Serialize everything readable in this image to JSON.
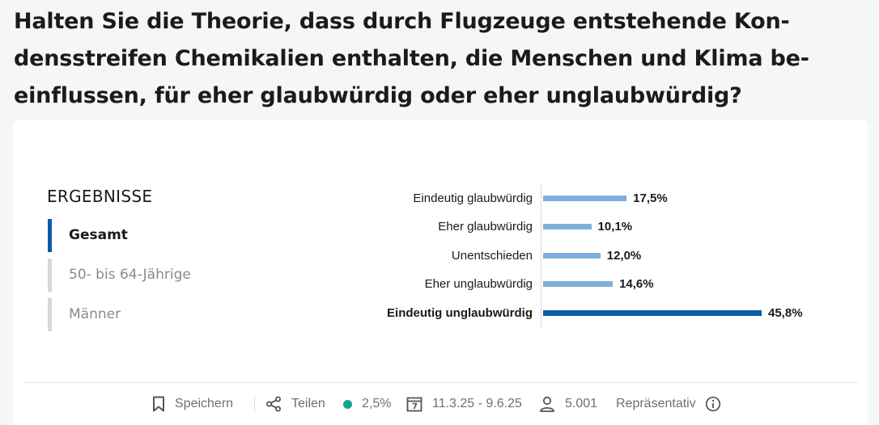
{
  "question": "Halten Sie die Theorie, dass durch Flugzeuge entstehende Kon­densstreifen Chemikalien enthalten, die Menschen und Klima be­einflussen, für eher glaubwürdig oder eher unglaubwürdig?",
  "results": {
    "heading": "ERGEBNISSE",
    "tabs": [
      {
        "label": "Gesamt",
        "active": true
      },
      {
        "label": "50- bis 64-Jährige",
        "active": false
      },
      {
        "label": "Männer",
        "active": false
      }
    ]
  },
  "chart_data": {
    "type": "bar",
    "orientation": "horizontal",
    "categories": [
      "Eindeutig glaubwürdig",
      "Eher glaubwürdig",
      "Unentschieden",
      "Eher unglaubwürdig",
      "Eindeutig unglaubwürdig"
    ],
    "values": [
      17.5,
      10.1,
      12.0,
      14.6,
      45.8
    ],
    "value_labels": [
      "17,5%",
      "10,1%",
      "12,0%",
      "14,6%",
      "45,8%"
    ],
    "highlighted_index": 4,
    "colors": {
      "default": "#7fb0db",
      "highlight": "#0a5ca8"
    },
    "xlim": [
      0,
      50
    ]
  },
  "footer": {
    "save_label": "Speichern",
    "share_label": "Teilen",
    "margin_of_error": "2,5%",
    "status_color": "#14a38b",
    "date_range": "11.3.25 - 9.6.25",
    "sample_size": "5.001",
    "representative_label": "Repräsentativ"
  },
  "icons": {
    "save": "bookmark-icon",
    "share": "share-icon",
    "calendar": "calendar-icon",
    "sample": "person-icon",
    "info": "info-icon"
  }
}
